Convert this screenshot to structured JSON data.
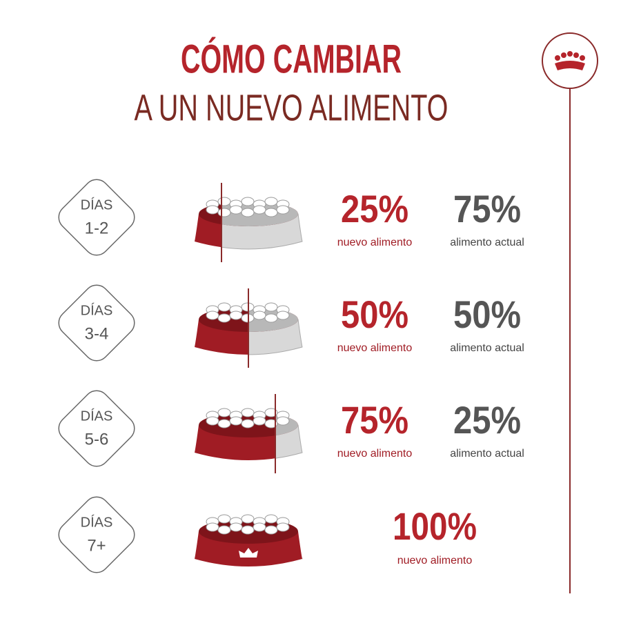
{
  "header": {
    "title": "CÓMO CAMBIAR",
    "subtitle": "A UN NUEVO ALIMENTO"
  },
  "rows": [
    {
      "days_label": "DÍAS",
      "days": "1-2",
      "new_pct": "25%",
      "new_label": "nuevo alimento",
      "current_pct": "75%",
      "current_label": "alimento actual"
    },
    {
      "days_label": "DÍAS",
      "days": "3-4",
      "new_pct": "50%",
      "new_label": "nuevo alimento",
      "current_pct": "50%",
      "current_label": "alimento actual"
    },
    {
      "days_label": "DÍAS",
      "days": "5-6",
      "new_pct": "75%",
      "new_label": "nuevo alimento",
      "current_pct": "25%",
      "current_label": "alimento actual"
    },
    {
      "days_label": "DÍAS",
      "days": "7+",
      "new_pct": "100%",
      "new_label": "nuevo alimento"
    }
  ]
}
